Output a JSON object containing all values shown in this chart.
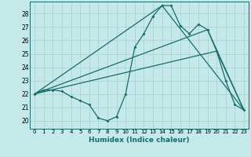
{
  "title": "",
  "xlabel": "Humidex (Indice chaleur)",
  "bg_color": "#c5e8e8",
  "line_color": "#1a6b6b",
  "grid_color": "#aad4d4",
  "xlim": [
    -0.5,
    23.5
  ],
  "ylim": [
    19.4,
    28.9
  ],
  "xticks": [
    0,
    1,
    2,
    3,
    4,
    5,
    6,
    7,
    8,
    9,
    10,
    11,
    12,
    13,
    14,
    15,
    16,
    17,
    18,
    19,
    20,
    21,
    22,
    23
  ],
  "yticks": [
    20,
    21,
    22,
    23,
    24,
    25,
    26,
    27,
    28
  ],
  "line1_x": [
    0,
    1,
    2,
    3,
    4,
    5,
    6,
    7,
    8,
    9,
    10,
    11,
    12,
    13,
    14,
    15,
    16,
    17,
    18,
    19,
    20,
    21,
    22,
    23
  ],
  "line1_y": [
    22.0,
    22.3,
    22.3,
    22.2,
    21.8,
    21.5,
    21.2,
    20.2,
    20.0,
    20.3,
    22.0,
    25.5,
    26.5,
    27.8,
    28.6,
    28.6,
    27.1,
    26.5,
    27.2,
    26.8,
    25.2,
    23.0,
    21.2,
    20.8
  ],
  "line2_x": [
    0,
    14,
    23
  ],
  "line2_y": [
    22.0,
    28.6,
    20.8
  ],
  "line3_x": [
    0,
    19,
    23
  ],
  "line3_y": [
    22.0,
    26.8,
    20.8
  ],
  "line4_x": [
    0,
    20,
    23
  ],
  "line4_y": [
    22.0,
    25.2,
    20.8
  ]
}
